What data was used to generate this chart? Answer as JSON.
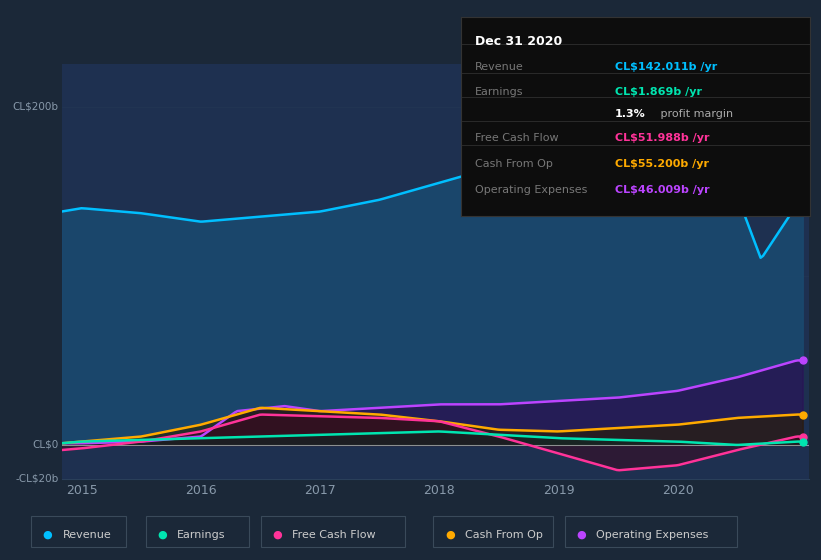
{
  "bg_color": "#1b2838",
  "plot_bg_color": "#1e3050",
  "grid_color": "#2a3f5a",
  "series": {
    "revenue": {
      "color": "#00bfff",
      "fill_color": "#1a4a70",
      "label": "Revenue"
    },
    "earnings": {
      "color": "#00e5b0",
      "fill_color": "#0a3a35",
      "label": "Earnings"
    },
    "free_cash_flow": {
      "color": "#ff3399",
      "fill_color": "#3a1030",
      "label": "Free Cash Flow"
    },
    "cash_from_op": {
      "color": "#ffaa00",
      "fill_color": "#3a2800",
      "label": "Cash From Op"
    },
    "operating_expenses": {
      "color": "#bb44ff",
      "fill_color": "#2a1a50",
      "label": "Operating Expenses"
    }
  },
  "info_box": {
    "date": "Dec 31 2020",
    "revenue_val": "CL$142.011b",
    "revenue_color": "#00bfff",
    "earnings_val": "CL$1.869b",
    "earnings_color": "#00e5b0",
    "profit_margin": "1.3%",
    "fcf_val": "CL$51.988b",
    "fcf_color": "#ff3399",
    "cash_op_val": "CL$55.200b",
    "cash_op_color": "#ffaa00",
    "op_exp_val": "CL$46.009b",
    "op_exp_color": "#bb44ff"
  },
  "legend_items": [
    {
      "label": "Revenue",
      "color": "#00bfff"
    },
    {
      "label": "Earnings",
      "color": "#00e5b0"
    },
    {
      "label": "Free Cash Flow",
      "color": "#ff3399"
    },
    {
      "label": "Cash From Op",
      "color": "#ffaa00"
    },
    {
      "label": "Operating Expenses",
      "color": "#bb44ff"
    }
  ]
}
